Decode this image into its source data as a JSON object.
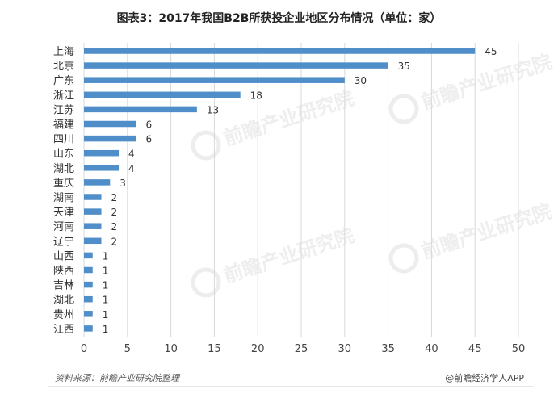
{
  "chart_data": {
    "type": "bar",
    "orientation": "horizontal",
    "title": "图表3：2017年我国B2B所获投企业地区分布情况（单位：家）",
    "categories": [
      "上海",
      "北京",
      "广东",
      "浙江",
      "江苏",
      "福建",
      "四川",
      "山东",
      "湖北",
      "重庆",
      "湖南",
      "天津",
      "河南",
      "辽宁",
      "山西",
      "陕西",
      "吉林",
      "湖北",
      "贵州",
      "江西"
    ],
    "values": [
      45,
      35,
      30,
      18,
      13,
      6,
      6,
      4,
      4,
      3,
      2,
      2,
      2,
      2,
      1,
      1,
      1,
      1,
      1,
      1
    ],
    "xlim": [
      0,
      50
    ],
    "xticks": [
      0,
      5,
      10,
      15,
      20,
      25,
      30,
      35,
      40,
      45,
      50
    ],
    "xlabel": "",
    "ylabel": "",
    "grid": "vertical",
    "bar_color": "#4f8ec9"
  },
  "footer": {
    "source": "资料来源：前瞻产业研究院整理",
    "credit": "@前瞻经济学人APP"
  },
  "watermark_text": "前瞻产业研究院"
}
